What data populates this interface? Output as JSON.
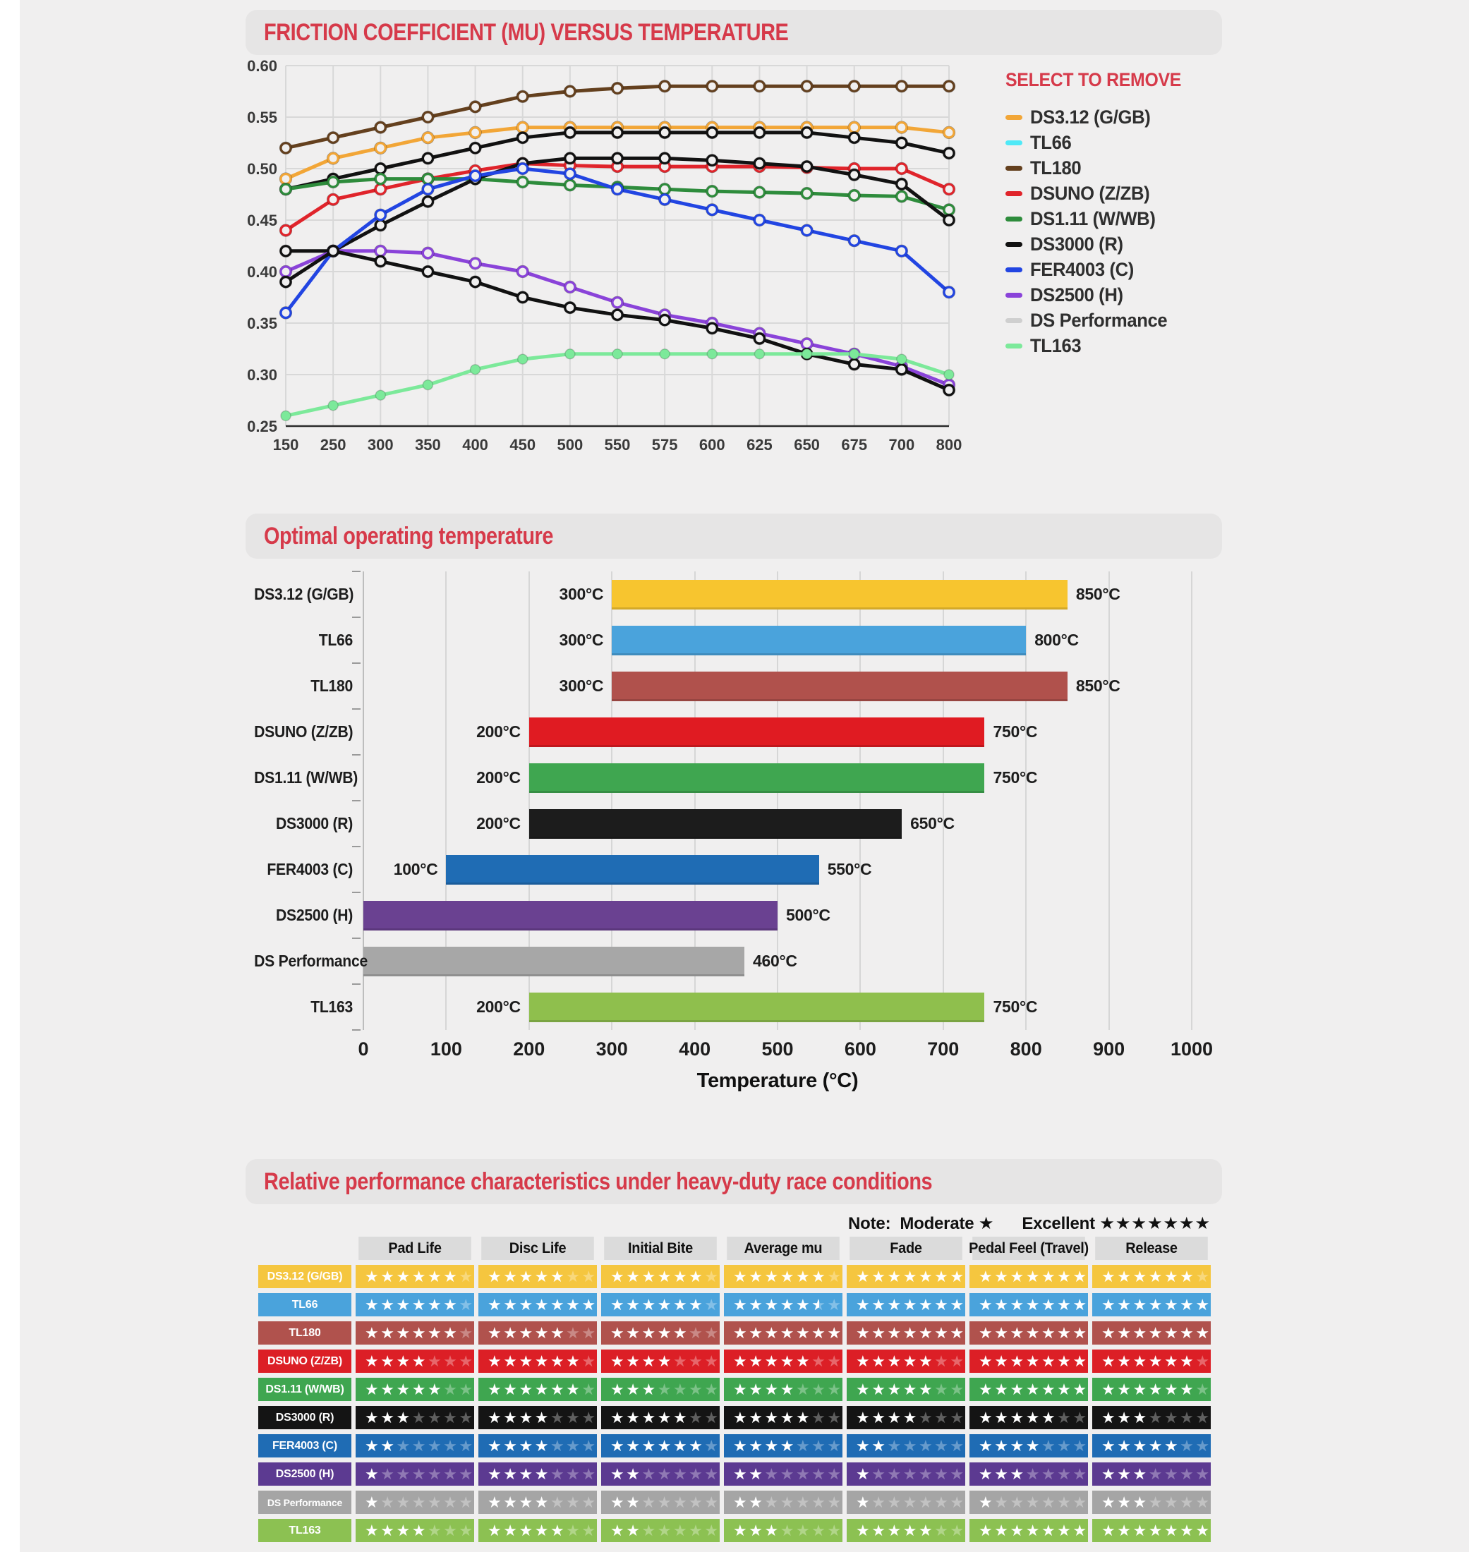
{
  "page": {
    "bg": "#f0efef",
    "accent": "#d63a4a"
  },
  "sections": {
    "friction_title": "FRICTION COEFFICIENT (MU) VERSUS TEMPERATURE",
    "temp_title": "Optimal operating temperature",
    "table_title": "Relative performance characteristics under heavy-duty race conditions"
  },
  "chart_data": [
    {
      "type": "line",
      "title": "FRICTION COEFFICIENT (MU) VERSUS TEMPERATURE",
      "legend_title": "SELECT TO REMOVE",
      "legend_position": "right",
      "grid": true,
      "xlabel": "",
      "ylabel": "",
      "ylim": [
        0.25,
        0.6
      ],
      "ytick_step": 0.05,
      "x_categories": [
        150,
        250,
        300,
        350,
        400,
        450,
        500,
        550,
        575,
        600,
        625,
        650,
        675,
        700,
        800
      ],
      "series": [
        {
          "name": "DS3.12 (G/GB)",
          "legend_color": "#F2A637",
          "line_color": "#F2A637",
          "marker": "ring",
          "values": [
            0.49,
            0.51,
            0.52,
            0.53,
            0.535,
            0.54,
            0.54,
            0.54,
            0.54,
            0.54,
            0.54,
            0.54,
            0.54,
            0.54,
            0.535
          ]
        },
        {
          "name": "TL66",
          "legend_color": "#4FE9F7",
          "line_color": "#111111",
          "marker": "ring",
          "values": [
            0.48,
            0.49,
            0.5,
            0.51,
            0.52,
            0.53,
            0.535,
            0.535,
            0.535,
            0.535,
            0.535,
            0.535,
            0.53,
            0.525,
            0.515
          ]
        },
        {
          "name": "TL180",
          "legend_color": "#64401E",
          "line_color": "#64401E",
          "marker": "ring",
          "values": [
            0.52,
            0.53,
            0.54,
            0.55,
            0.56,
            0.57,
            0.575,
            0.578,
            0.58,
            0.58,
            0.58,
            0.58,
            0.58,
            0.58,
            0.58
          ]
        },
        {
          "name": "DSUNO (Z/ZB)",
          "legend_color": "#E0242B",
          "line_color": "#E0242B",
          "marker": "ring",
          "values": [
            0.44,
            0.47,
            0.48,
            0.49,
            0.498,
            0.505,
            0.503,
            0.502,
            0.502,
            0.502,
            0.502,
            0.501,
            0.5,
            0.5,
            0.48
          ]
        },
        {
          "name": "DS1.11 (W/WB)",
          "legend_color": "#2E8C3C",
          "line_color": "#2E8C3C",
          "marker": "ring",
          "values": [
            0.48,
            0.487,
            0.49,
            0.49,
            0.49,
            0.487,
            0.484,
            0.482,
            0.48,
            0.478,
            0.477,
            0.476,
            0.474,
            0.473,
            0.46
          ]
        },
        {
          "name": "DS3000 (R)",
          "legend_color": "#121212",
          "line_color": "#121212",
          "marker": "ring",
          "values": [
            0.42,
            0.42,
            0.445,
            0.468,
            0.49,
            0.505,
            0.51,
            0.51,
            0.51,
            0.508,
            0.505,
            0.502,
            0.494,
            0.485,
            0.45
          ]
        },
        {
          "name": "FER4003 (C)",
          "legend_color": "#2245E2",
          "line_color": "#2245E2",
          "marker": "ring",
          "values": [
            0.36,
            0.42,
            0.455,
            0.48,
            0.493,
            0.5,
            0.495,
            0.48,
            0.47,
            0.46,
            0.45,
            0.44,
            0.43,
            0.42,
            0.38
          ]
        },
        {
          "name": "DS2500 (H)",
          "legend_color": "#8A43D9",
          "line_color": "#8A43D9",
          "marker": "ring",
          "values": [
            0.4,
            0.42,
            0.42,
            0.418,
            0.408,
            0.4,
            0.385,
            0.37,
            0.358,
            0.35,
            0.34,
            0.33,
            0.32,
            0.308,
            0.29
          ]
        },
        {
          "name": "DS Performance",
          "legend_color": "#CFCFCF",
          "line_color": "#111111",
          "marker": "ring",
          "values": [
            0.39,
            0.42,
            0.41,
            0.4,
            0.39,
            0.375,
            0.365,
            0.358,
            0.353,
            0.345,
            0.335,
            0.32,
            0.31,
            0.305,
            0.285
          ]
        },
        {
          "name": "TL163",
          "legend_color": "#7CE99A",
          "line_color": "#7CE99A",
          "marker": "dot",
          "values": [
            0.26,
            0.27,
            0.28,
            0.29,
            0.305,
            0.315,
            0.32,
            0.32,
            0.32,
            0.32,
            0.32,
            0.32,
            0.32,
            0.315,
            0.3
          ]
        }
      ]
    },
    {
      "type": "bar",
      "orientation": "horizontal",
      "title": "Optimal operating temperature",
      "xlabel": "Temperature (°C)",
      "xlim": [
        0,
        1000
      ],
      "xticks": [
        0,
        100,
        200,
        300,
        400,
        500,
        600,
        700,
        800,
        900,
        1000
      ],
      "grid": true,
      "bars": [
        {
          "label": "DS3.12 (G/GB)",
          "start": 300,
          "end": 850,
          "start_label": "300°C",
          "end_label": "850°C",
          "color": "#F7C52F"
        },
        {
          "label": "TL66",
          "start": 300,
          "end": 800,
          "start_label": "300°C",
          "end_label": "800°C",
          "color": "#4AA3DC"
        },
        {
          "label": "TL180",
          "start": 300,
          "end": 850,
          "start_label": "300°C",
          "end_label": "850°C",
          "color": "#B0514C"
        },
        {
          "label": "DSUNO (Z/ZB)",
          "start": 200,
          "end": 750,
          "start_label": "200°C",
          "end_label": "750°C",
          "color": "#E01B22"
        },
        {
          "label": "DS1.11 (W/WB)",
          "start": 200,
          "end": 750,
          "start_label": "200°C",
          "end_label": "750°C",
          "color": "#3FA650"
        },
        {
          "label": "DS3000 (R)",
          "start": 200,
          "end": 650,
          "start_label": "200°C",
          "end_label": "650°C",
          "color": "#1C1C1C"
        },
        {
          "label": "FER4003 (C)",
          "start": 100,
          "end": 550,
          "start_label": "100°C",
          "end_label": "550°C",
          "color": "#1F6CB4"
        },
        {
          "label": "DS2500 (H)",
          "start": 0,
          "end": 500,
          "start_label": "",
          "end_label": "500°C",
          "color": "#6A4191"
        },
        {
          "label": "DS Performance",
          "start": 0,
          "end": 460,
          "start_label": "",
          "end_label": "460°C",
          "color": "#A7A7A7"
        },
        {
          "label": "TL163",
          "start": 200,
          "end": 750,
          "start_label": "200°C",
          "end_label": "750°C",
          "color": "#8FBF4D"
        }
      ]
    },
    {
      "type": "table",
      "title": "Relative performance characteristics under heavy-duty race conditions",
      "note": {
        "label": "Note:",
        "moderate_label": "Moderate",
        "moderate_stars": 1,
        "excellent_label": "Excellent",
        "excellent_stars": 7
      },
      "rating_max": 7,
      "columns": [
        "Pad Life",
        "Disc Life",
        "Initial Bite",
        "Average mu",
        "Fade",
        "Pedal Feel (Travel)",
        "Release"
      ],
      "rows": [
        {
          "label": "DS3.12 (G/GB)",
          "color": "#F5C63F",
          "ratings": [
            6,
            5,
            6,
            6,
            7,
            7,
            6
          ]
        },
        {
          "label": "TL66",
          "color": "#4AA3DC",
          "ratings": [
            6,
            7,
            6,
            5.5,
            7,
            7,
            7
          ]
        },
        {
          "label": "TL180",
          "color": "#B0524D",
          "ratings": [
            6,
            5,
            5,
            7,
            7,
            7,
            7
          ]
        },
        {
          "label": "DSUNO (Z/ZB)",
          "color": "#DC1F26",
          "ratings": [
            4,
            6,
            4,
            5,
            5,
            7,
            6
          ]
        },
        {
          "label": "DS1.11 (W/WB)",
          "color": "#3FA650",
          "ratings": [
            5,
            6,
            3,
            4,
            5,
            7,
            6
          ]
        },
        {
          "label": "DS3000 (R)",
          "color": "#141414",
          "ratings": [
            3,
            4,
            5,
            5,
            4,
            5,
            3
          ]
        },
        {
          "label": "FER4003 (C)",
          "color": "#1F6CB4",
          "ratings": [
            2,
            4,
            6,
            4,
            2,
            4,
            5
          ]
        },
        {
          "label": "DS2500 (H)",
          "color": "#5C3A91",
          "ratings": [
            1,
            4,
            2,
            2,
            1,
            3,
            3
          ]
        },
        {
          "label": "DS Performance",
          "color": "#A5A5A5",
          "ratings": [
            1,
            4,
            2,
            2,
            1,
            1,
            3
          ]
        },
        {
          "label": "TL163",
          "color": "#8CC152",
          "ratings": [
            4,
            5,
            2,
            3,
            5,
            7,
            7
          ]
        }
      ]
    }
  ]
}
